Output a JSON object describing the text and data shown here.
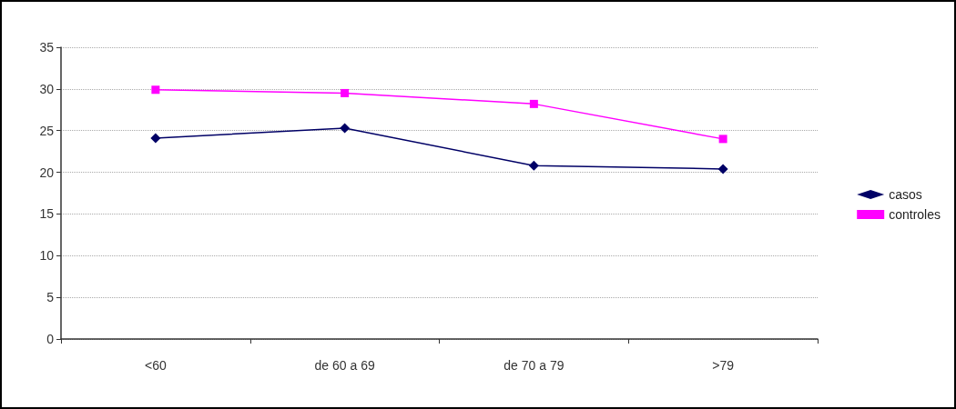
{
  "chart_data": {
    "type": "line",
    "categories": [
      "<60",
      "de 60 a 69",
      "de 70 a 79",
      ">79"
    ],
    "series": [
      {
        "name": "casos",
        "color": "#000066",
        "marker": "diamond",
        "values": [
          24.1,
          25.3,
          20.8,
          20.4
        ]
      },
      {
        "name": "controles",
        "color": "#ff00ff",
        "marker": "square",
        "values": [
          29.9,
          29.5,
          28.2,
          24.0
        ]
      }
    ],
    "ylim": [
      0,
      35
    ],
    "yticks": [
      0,
      5,
      10,
      15,
      20,
      25,
      30,
      35
    ],
    "grid": "y",
    "legend": "right"
  }
}
